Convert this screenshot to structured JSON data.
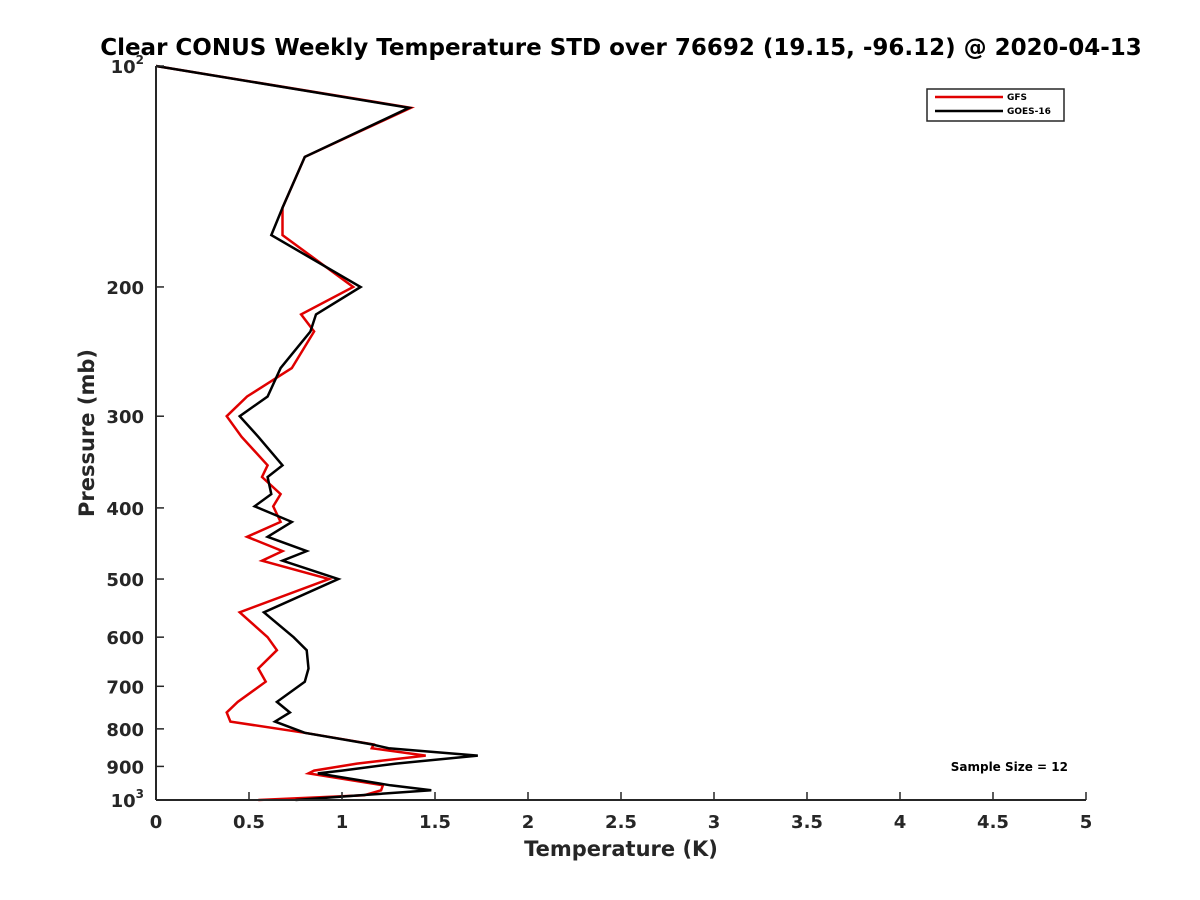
{
  "chart_data": {
    "type": "line",
    "title": "Clear CONUS Weekly Temperature STD over 76692 (19.15, -96.12) @ 2020-04-13",
    "xlabel": "Temperature (K)",
    "ylabel": "Pressure (mb)",
    "xlim": [
      0,
      5
    ],
    "ylim": [
      100,
      1000
    ],
    "yscale": "log",
    "y_reversed": true,
    "x_ticks": [
      0,
      0.5,
      1,
      1.5,
      2,
      2.5,
      3,
      3.5,
      4,
      4.5,
      5
    ],
    "x_tick_labels": [
      "0",
      "0.5",
      "1",
      "1.5",
      "2",
      "2.5",
      "3",
      "3.5",
      "4",
      "4.5",
      "5"
    ],
    "y_ticks": [
      100,
      200,
      300,
      400,
      500,
      600,
      700,
      800,
      900,
      1000
    ],
    "y_tick_labels": [
      {
        "base": "10",
        "sup": "2"
      },
      {
        "base": "200",
        "sup": ""
      },
      {
        "base": "300",
        "sup": ""
      },
      {
        "base": "400",
        "sup": ""
      },
      {
        "base": "500",
        "sup": ""
      },
      {
        "base": "600",
        "sup": ""
      },
      {
        "base": "700",
        "sup": ""
      },
      {
        "base": "800",
        "sup": ""
      },
      {
        "base": "900",
        "sup": ""
      },
      {
        "base": "10",
        "sup": "3"
      }
    ],
    "legend_position": "top-right",
    "annotation": "Sample Size = 12",
    "series": [
      {
        "name": "GFS",
        "color": "#e00000",
        "x": [
          0.0,
          1.37,
          0.8,
          0.68,
          0.68,
          1.06,
          0.78,
          0.85,
          0.73,
          0.49,
          0.38,
          0.46,
          0.6,
          0.57,
          0.67,
          0.63,
          0.67,
          0.49,
          0.68,
          0.57,
          0.93,
          0.45,
          0.6,
          0.65,
          0.55,
          0.59,
          0.44,
          0.38,
          0.4,
          0.8,
          1.17,
          1.16,
          1.45,
          1.08,
          0.85,
          0.82,
          1.22,
          1.21,
          1.12,
          0.55
        ],
        "y": [
          100,
          114,
          133,
          156,
          170,
          200,
          218,
          230,
          258,
          282,
          300,
          320,
          350,
          363,
          383,
          398,
          418,
          438,
          458,
          472,
          500,
          555,
          600,
          625,
          662,
          690,
          735,
          760,
          782,
          810,
          840,
          850,
          870,
          892,
          912,
          920,
          955,
          970,
          985,
          1000
        ]
      },
      {
        "name": "GOES-16",
        "color": "#000000",
        "x": [
          0.0,
          1.36,
          0.8,
          0.68,
          0.62,
          1.1,
          0.86,
          0.83,
          0.67,
          0.6,
          0.45,
          0.55,
          0.68,
          0.6,
          0.62,
          0.53,
          0.73,
          0.6,
          0.81,
          0.68,
          0.98,
          0.58,
          0.74,
          0.81,
          0.82,
          0.8,
          0.65,
          0.72,
          0.64,
          0.8,
          1.16,
          1.25,
          1.73,
          1.29,
          1.0,
          0.87,
          1.26,
          1.48,
          1.1,
          0.75
        ],
        "y": [
          100,
          114,
          133,
          156,
          170,
          200,
          218,
          230,
          258,
          282,
          300,
          320,
          350,
          363,
          383,
          398,
          418,
          438,
          458,
          472,
          500,
          555,
          600,
          625,
          662,
          690,
          735,
          760,
          782,
          810,
          840,
          850,
          870,
          892,
          912,
          920,
          955,
          970,
          985,
          1000
        ]
      }
    ]
  }
}
